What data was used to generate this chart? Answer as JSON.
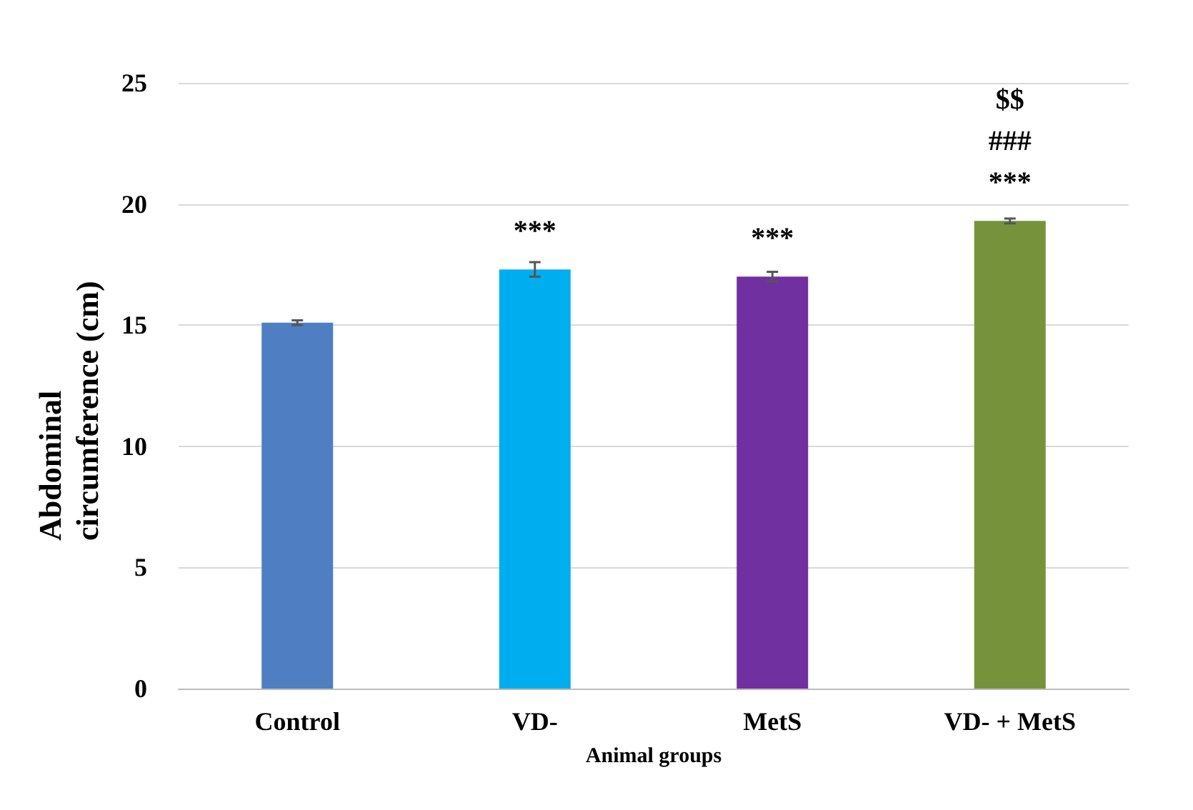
{
  "chart_data": {
    "type": "bar",
    "xlabel": "Animal groups",
    "ylabel": "Abdominal circumference (cm)",
    "categories": [
      "Control",
      "VD-",
      "MetS",
      "VD- + MetS"
    ],
    "values": [
      15.1,
      17.3,
      17.0,
      19.3
    ],
    "colors": [
      "#4f7fc2",
      "#00aeef",
      "#7030a0",
      "#76933c"
    ],
    "errors": [
      0.1,
      0.3,
      0.2,
      0.1
    ],
    "value_labels": [
      null,
      "***",
      "***",
      "$$\n###\n***"
    ],
    "ylim": [
      0,
      25
    ],
    "yticks": [
      0,
      5,
      10,
      15,
      20,
      25
    ],
    "grid": "y"
  }
}
